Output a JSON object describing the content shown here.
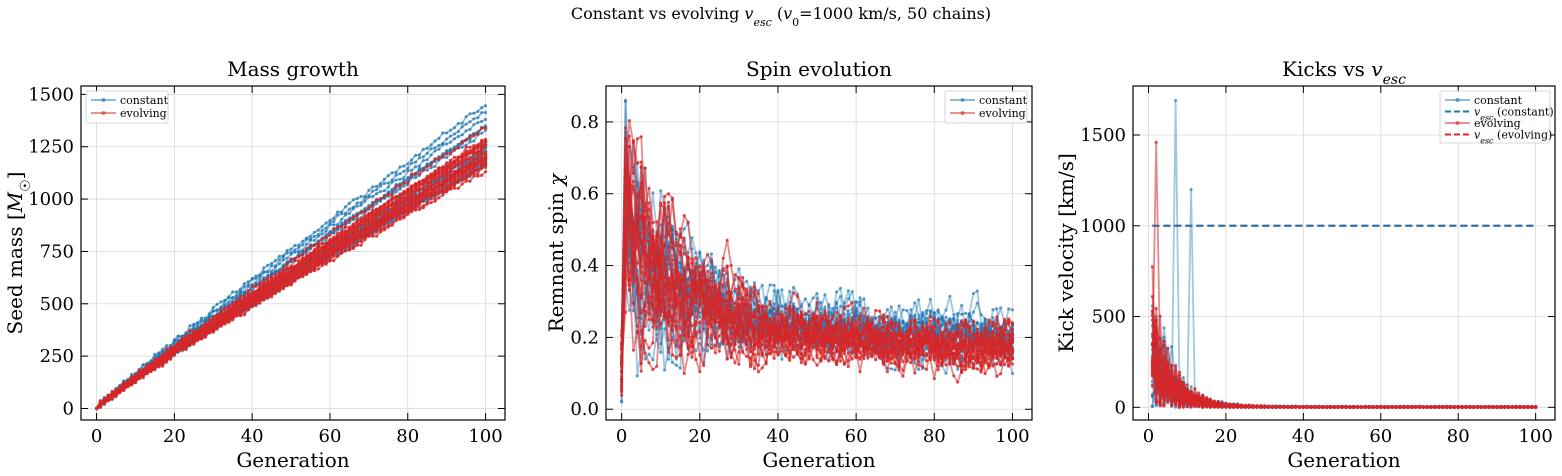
{
  "figure": {
    "suptitle": "Constant vs evolving v_esc (v₀=1000 km/s, 50 chains)"
  },
  "colors": {
    "constant": "#1f77b4",
    "evolving": "#d62728",
    "grid": "#d9d9d9"
  },
  "chart_data": [
    {
      "type": "line",
      "title": "Mass growth",
      "xlabel": "Generation",
      "ylabel": "Seed mass [M☉]",
      "xlim": [
        -4,
        105
      ],
      "ylim": [
        -55,
        1540
      ],
      "xticks": [
        0,
        20,
        40,
        60,
        80,
        100
      ],
      "yticks": [
        0,
        250,
        500,
        750,
        1000,
        1250,
        1500
      ],
      "grid": true,
      "legend": {
        "placement": "top-left",
        "entries": [
          "constant",
          "evolving"
        ]
      },
      "series": [
        {
          "name": "constant",
          "x_range": [
            0,
            100
          ],
          "y_start": 0,
          "y_end_range": [
            1150,
            1470
          ]
        },
        {
          "name": "evolving",
          "x_range": [
            0,
            100
          ],
          "y_start": 0,
          "y_end_range": [
            1130,
            1385
          ]
        }
      ]
    },
    {
      "type": "line",
      "title": "Spin evolution",
      "xlabel": "Generation",
      "ylabel": "Remnant spin χ",
      "xlim": [
        -4,
        105
      ],
      "ylim": [
        -0.03,
        0.9
      ],
      "xticks": [
        0,
        20,
        40,
        60,
        80,
        100
      ],
      "yticks": [
        0.0,
        0.2,
        0.4,
        0.6,
        0.8
      ],
      "grid": true,
      "legend": {
        "placement": "top-right",
        "entries": [
          "constant",
          "evolving"
        ]
      },
      "series": [
        {
          "name": "constant",
          "x_range": [
            0,
            100
          ],
          "y_peak": 0.86,
          "y_mean_start": 0.45,
          "y_mean_end": 0.2
        },
        {
          "name": "evolving",
          "x_range": [
            0,
            100
          ],
          "y_peak": 0.85,
          "y_mean_start": 0.45,
          "y_mean_end": 0.17
        }
      ]
    },
    {
      "type": "line",
      "title": "Kicks vs v_esc",
      "xlabel": "Generation",
      "ylabel": "Kick velocity [km/s]",
      "xlim": [
        -4,
        105
      ],
      "ylim": [
        -70,
        1770
      ],
      "xticks": [
        0,
        20,
        40,
        60,
        80,
        100
      ],
      "yticks": [
        0,
        500,
        1000,
        1500
      ],
      "grid": true,
      "legend": {
        "placement": "top-right",
        "entries": [
          "constant",
          "v_esc (constant)",
          "evolving",
          "v_esc (evolving)"
        ]
      },
      "series": [
        {
          "name": "constant",
          "x_range": [
            1,
            100
          ],
          "y_max": 1690,
          "y_tail": 5
        },
        {
          "name": "v_esc (constant)",
          "x": [
            1,
            100
          ],
          "y": [
            1000,
            1000
          ]
        },
        {
          "name": "evolving",
          "x_range": [
            1,
            100
          ],
          "y_max": 1460,
          "y_tail": 3
        },
        {
          "name": "v_esc (evolving)",
          "x": [
            1,
            100
          ],
          "y": [
            1000,
            1000
          ]
        }
      ]
    }
  ]
}
